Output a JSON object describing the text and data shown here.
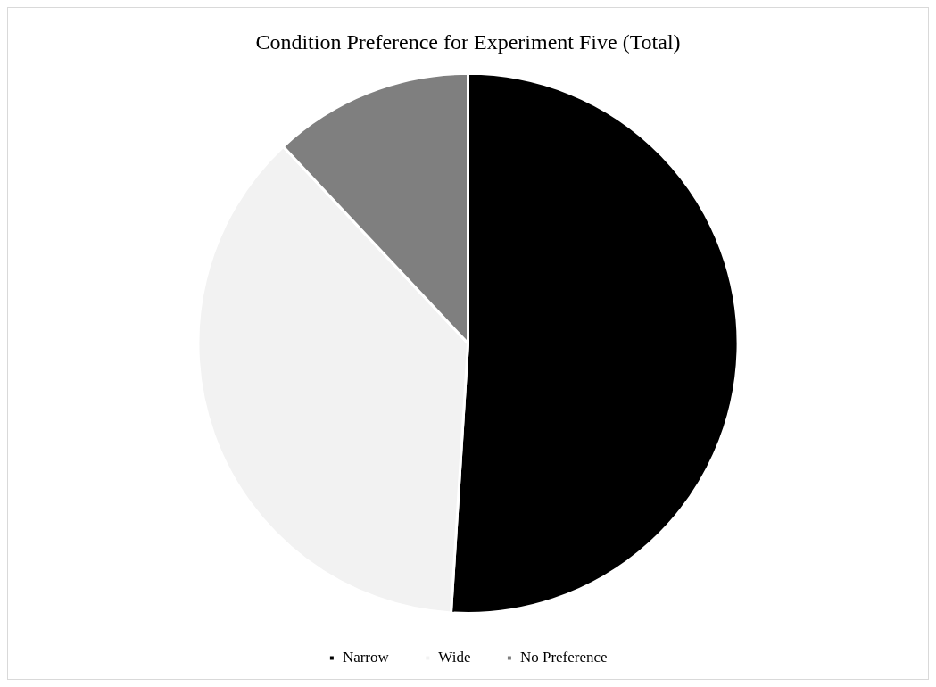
{
  "chart_data": {
    "type": "pie",
    "title": "Condition Preference for Experiment Five (Total)",
    "categories": [
      "Narrow",
      "Wide",
      "No Preference"
    ],
    "values": [
      51,
      37,
      12
    ],
    "colors": [
      "#000000",
      "#f2f2f2",
      "#7f7f7f"
    ],
    "legend": "bottom"
  }
}
